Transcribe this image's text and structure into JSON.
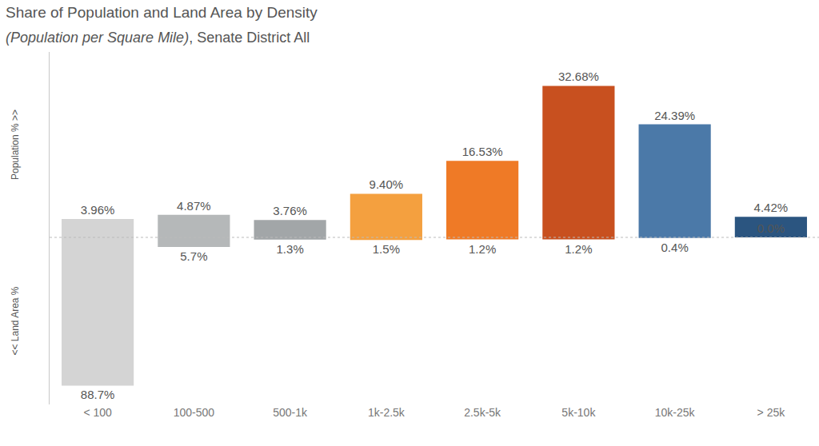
{
  "chart_data": {
    "type": "bar",
    "title": "Share of Population and Land Area by Density",
    "subtitle": "(Population per Square Mile), Senate District All",
    "categories": [
      "< 100",
      "100-500",
      "500-1k",
      "1k-2.5k",
      "2.5k-5k",
      "5k-10k",
      "10k-25k",
      "> 25k"
    ],
    "colors": [
      "#d4d4d4",
      "#b5b8b9",
      "#a2a6a8",
      "#f4a03f",
      "#ef7a26",
      "#c8501f",
      "#4b79a8",
      "#2b5580"
    ],
    "series": [
      {
        "values": [
          3.96,
          4.87,
          3.76,
          9.4,
          16.53,
          32.68,
          24.39,
          4.42
        ],
        "value_labels": [
          "3.96%",
          "4.87%",
          "3.76%",
          "9.40%",
          "16.53%",
          "32.68%",
          "24.39%",
          "4.42%"
        ],
        "axis": "y"
      },
      {
        "values": [
          88.7,
          5.7,
          1.3,
          1.5,
          1.2,
          1.2,
          0.4,
          0.0
        ],
        "value_labels": [
          "88.7%",
          "5.7%",
          "1.3%",
          "1.5%",
          "1.2%",
          "1.2%",
          "0.4%",
          "0.0%"
        ],
        "axis": "y2"
      }
    ],
    "ylabel": "Population % >>",
    "y2label": "<< Land Area %",
    "ylim": [
      0,
      40
    ],
    "y2lim": [
      100,
      0
    ],
    "tick_labels": "x",
    "data_labels": true,
    "grid": false
  }
}
